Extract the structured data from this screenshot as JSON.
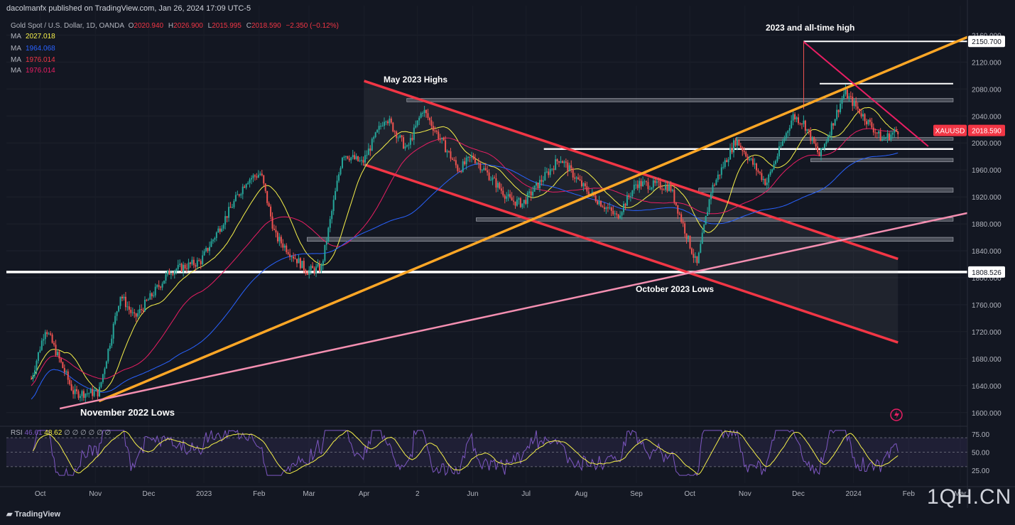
{
  "header": {
    "publisher": "dacolmanfx published on TradingView.com, Jan 26, 2024 17:09 UTC-5"
  },
  "symbol": {
    "name": "Gold Spot / U.S. Dollar, 1D, OANDA",
    "o_label": "O",
    "o": "2020.940",
    "h_label": "H",
    "h": "2026.900",
    "l_label": "L",
    "l": "2015.995",
    "c_label": "C",
    "c": "2018.590",
    "chg": "−2.350 (−0.12%)"
  },
  "moving_averages": [
    {
      "label": "MA",
      "value": "2027.018",
      "color": "#f7f14a"
    },
    {
      "label": "MA",
      "value": "1964.068",
      "color": "#2962ff"
    },
    {
      "label": "MA",
      "value": "1976.014",
      "color": "#f23645"
    },
    {
      "label": "MA",
      "value": "1976.014",
      "color": "#e91e63"
    }
  ],
  "rsi": {
    "label": "RSI",
    "value": "46.61",
    "ma_value": "48.62",
    "extras": "∅ ∅ ∅ ∅ ∅ ∅",
    "value_color": "#7e57c2",
    "ma_color": "#f7f14a"
  },
  "price_labels": {
    "high_tag": "2150.700",
    "symbol_tag": "XAUUSD",
    "last_tag": "2018.590",
    "low_tag": "1808.526"
  },
  "annotations": {
    "ath": "2023 and all-time high",
    "may": "May 2023 Highs",
    "oct": "October 2023 Lows",
    "nov": "November 2022 Lows"
  },
  "branding": {
    "logo": "TradingView",
    "watermark": "1QH.CN"
  },
  "chart_data": {
    "type": "candlestick",
    "title": "Gold Spot / U.S. Dollar, 1D, OANDA",
    "x_ticks": [
      "Oct",
      "Nov",
      "Dec",
      "2023",
      "Feb",
      "Mar",
      "Apr",
      "2",
      "Jun",
      "Jul",
      "Aug",
      "Sep",
      "Oct",
      "Nov",
      "Dec",
      "2024",
      "Feb",
      "Mar"
    ],
    "y_ticks": [
      1600,
      1640,
      1680,
      1720,
      1760,
      1800,
      1840,
      1880,
      1920,
      1960,
      2000,
      2040,
      2080,
      2120,
      2160
    ],
    "ylim": [
      1585,
      2172
    ],
    "rsi_ticks": [
      25,
      50,
      75
    ],
    "close_path": [
      {
        "date": "2022-09-26",
        "price": 1650
      },
      {
        "date": "2022-10-04",
        "price": 1726
      },
      {
        "date": "2022-10-20",
        "price": 1628
      },
      {
        "date": "2022-11-03",
        "price": 1630
      },
      {
        "date": "2022-11-15",
        "price": 1775
      },
      {
        "date": "2022-11-23",
        "price": 1740
      },
      {
        "date": "2022-12-13",
        "price": 1810
      },
      {
        "date": "2022-12-30",
        "price": 1824
      },
      {
        "date": "2023-01-25",
        "price": 1945
      },
      {
        "date": "2023-02-02",
        "price": 1955
      },
      {
        "date": "2023-02-10",
        "price": 1862
      },
      {
        "date": "2023-02-28",
        "price": 1810
      },
      {
        "date": "2023-03-08",
        "price": 1815
      },
      {
        "date": "2023-03-20",
        "price": 1985
      },
      {
        "date": "2023-03-31",
        "price": 1970
      },
      {
        "date": "2023-04-13",
        "price": 2040
      },
      {
        "date": "2023-04-25",
        "price": 1990
      },
      {
        "date": "2023-05-04",
        "price": 2050
      },
      {
        "date": "2023-05-24",
        "price": 1960
      },
      {
        "date": "2023-06-01",
        "price": 1980
      },
      {
        "date": "2023-06-22",
        "price": 1915
      },
      {
        "date": "2023-06-29",
        "price": 1910
      },
      {
        "date": "2023-07-20",
        "price": 1978
      },
      {
        "date": "2023-08-02",
        "price": 1935
      },
      {
        "date": "2023-08-21",
        "price": 1890
      },
      {
        "date": "2023-09-01",
        "price": 1940
      },
      {
        "date": "2023-09-20",
        "price": 1935
      },
      {
        "date": "2023-10-05",
        "price": 1818
      },
      {
        "date": "2023-10-13",
        "price": 1930
      },
      {
        "date": "2023-10-27",
        "price": 2005
      },
      {
        "date": "2023-11-13",
        "price": 1940
      },
      {
        "date": "2023-11-28",
        "price": 2040
      },
      {
        "date": "2023-12-04",
        "price": 2030
      },
      {
        "date": "2023-12-13",
        "price": 1980
      },
      {
        "date": "2023-12-27",
        "price": 2075
      },
      {
        "date": "2024-01-05",
        "price": 2045
      },
      {
        "date": "2024-01-17",
        "price": 2005
      },
      {
        "date": "2024-01-26",
        "price": 2018.59
      }
    ],
    "key_levels": [
      {
        "name": "all-time-high",
        "value": 2150.7
      },
      {
        "name": "2023-high-zone",
        "value": 2088
      },
      {
        "name": "may-highs-zone",
        "value": 2063
      },
      {
        "name": "last",
        "value": 2018.59
      },
      {
        "name": "support",
        "value": 2005
      },
      {
        "name": "support-2",
        "value": 1990
      },
      {
        "name": "support-3",
        "value": 1975
      },
      {
        "name": "zone-1930",
        "value": 1930
      },
      {
        "name": "zone-1886",
        "value": 1886
      },
      {
        "name": "zone-1857",
        "value": 1857
      },
      {
        "name": "oct-lows",
        "value": 1808.526
      }
    ]
  }
}
